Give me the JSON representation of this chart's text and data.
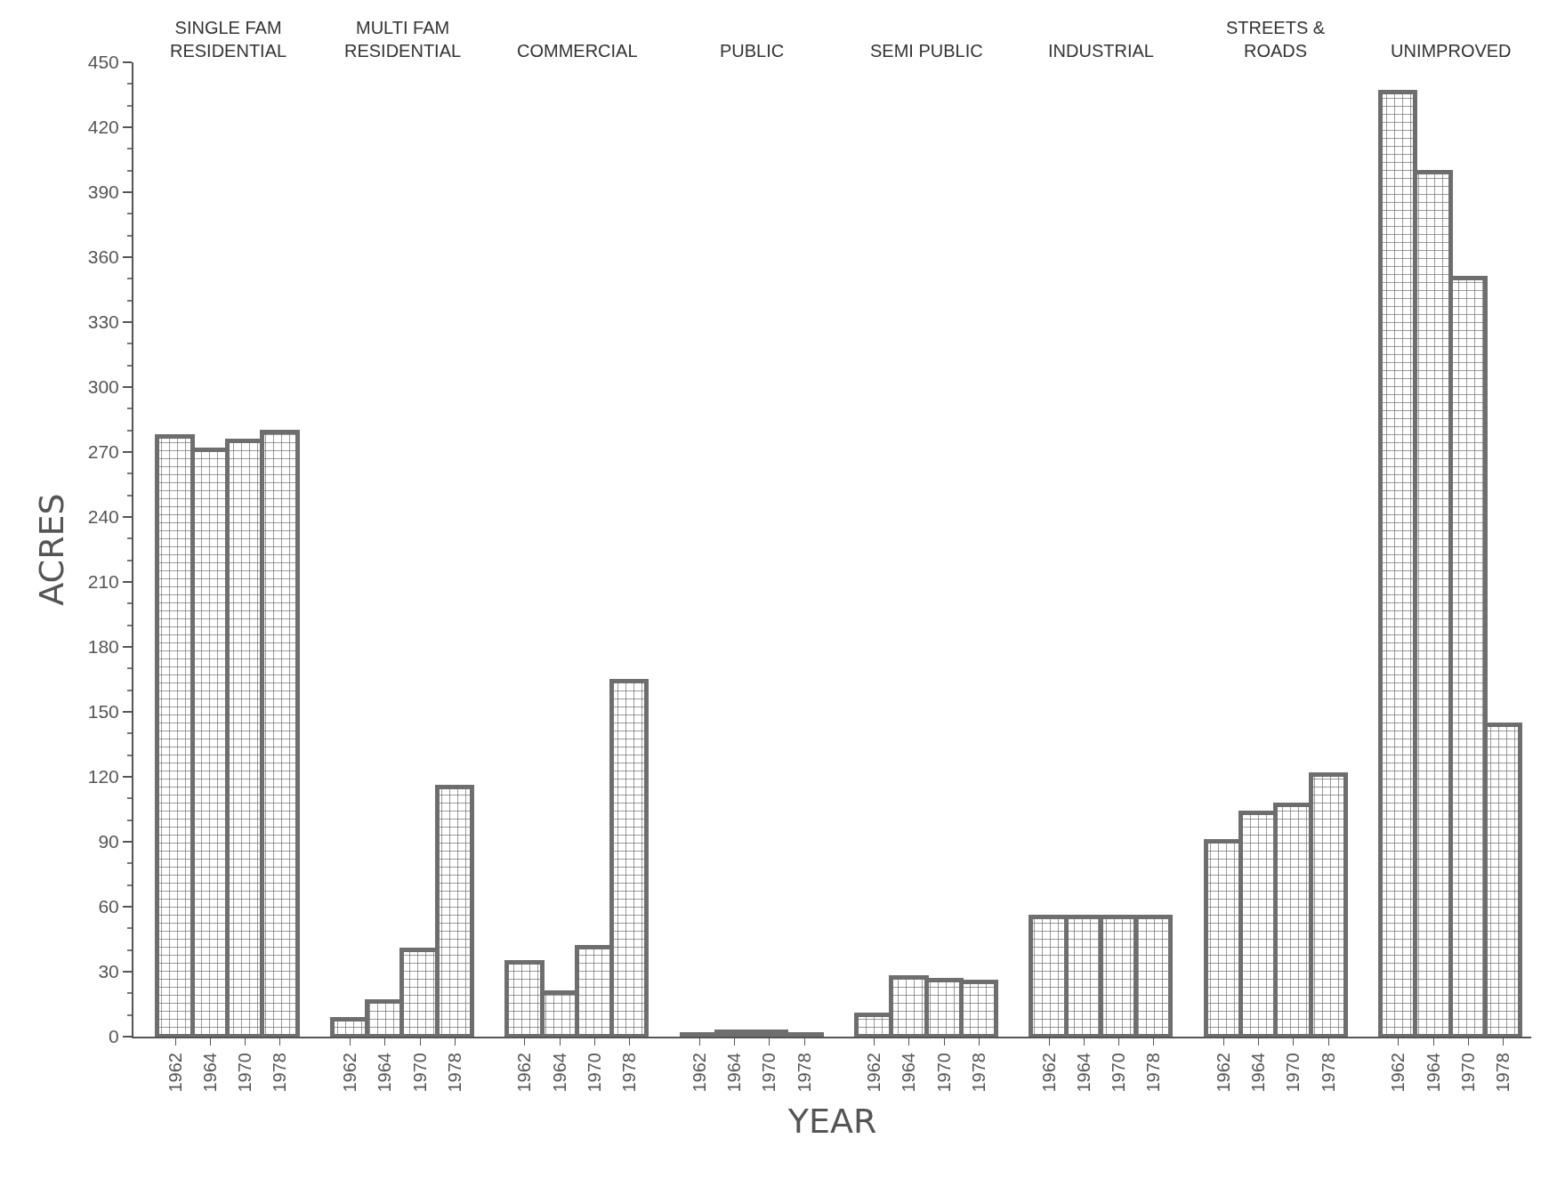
{
  "chart_data": {
    "type": "bar",
    "xlabel": "YEAR",
    "ylabel": "ACRES",
    "categories": [
      "1962",
      "1964",
      "1970",
      "1978",
      "1962",
      "1964",
      "1970",
      "1978",
      "1962",
      "1964",
      "1970",
      "1978",
      "1962",
      "1964",
      "1970",
      "1978",
      "1962",
      "1964",
      "1970",
      "1978",
      "1962",
      "1964",
      "1970",
      "1978",
      "1962",
      "1964",
      "1970",
      "1978",
      "1962",
      "1964",
      "1970",
      "1978"
    ],
    "values": [
      277,
      271,
      275,
      279,
      8,
      16,
      40,
      115,
      34,
      20,
      41,
      164,
      1,
      2,
      2,
      1,
      10,
      27,
      26,
      25,
      55,
      55,
      55,
      55,
      90,
      103,
      107,
      121,
      436,
      399,
      350,
      144
    ],
    "color": "#6e6e6e",
    "annotations": [
      "SINGLE FAM\nRESIDENTIAL",
      "MULTI FAM\nRESIDENTIAL",
      "COMMERCIAL",
      "PUBLIC",
      "SEMI PUBLIC",
      "INDUSTRIAL",
      "STREETS &\nROADS",
      "UNIMPROVED"
    ],
    "ylim": [
      0,
      450
    ],
    "yticks": [
      0,
      30,
      60,
      90,
      120,
      150,
      180,
      210,
      240,
      270,
      300,
      330,
      360,
      390,
      420,
      450
    ],
    "grid": false,
    "legend": false
  }
}
